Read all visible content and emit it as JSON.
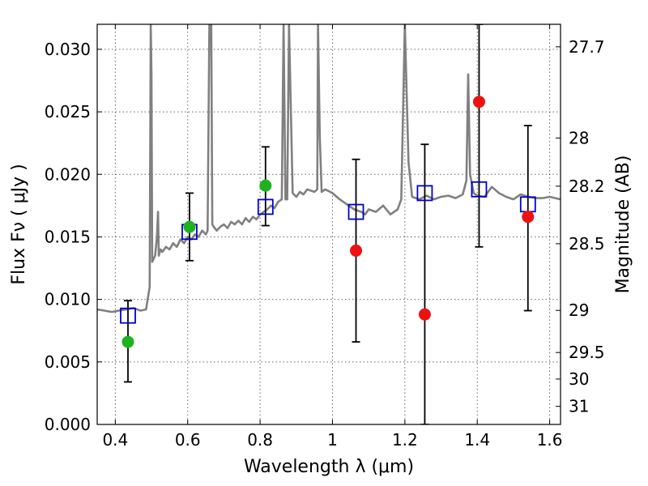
{
  "chart_data": {
    "type": "scatter",
    "title": "",
    "xlabel": "Wavelength  λ (μm)",
    "ylabel": "Flux  Fν  ( μJy )",
    "y2label": "Magnitude (AB)",
    "xlim": [
      0.35,
      1.63
    ],
    "ylim": [
      0.0,
      0.032
    ],
    "grid": true,
    "x_ticks": [
      0.4,
      0.6,
      0.8,
      1.0,
      1.2,
      1.4,
      1.6
    ],
    "x_tick_labels": [
      "0.4",
      "0.6",
      "0.8",
      "1",
      "1.2",
      "1.4",
      "1.6"
    ],
    "y_ticks": [
      0.0,
      0.005,
      0.01,
      0.015,
      0.02,
      0.025,
      0.03
    ],
    "y_tick_labels": [
      "0.000",
      "0.005",
      "0.010",
      "0.015",
      "0.020",
      "0.025",
      "0.030"
    ],
    "y2_ticks": [
      {
        "flux": 0.030199,
        "label": "27.7"
      },
      {
        "flux": 0.022909,
        "label": "28"
      },
      {
        "flux": 0.019055,
        "label": "28.2"
      },
      {
        "flux": 0.014454,
        "label": "28.5"
      },
      {
        "flux": 0.00912,
        "label": "29"
      },
      {
        "flux": 0.005754,
        "label": "29.5"
      },
      {
        "flux": 0.003631,
        "label": "30"
      },
      {
        "flux": 0.001445,
        "label": "31"
      }
    ],
    "colors": {
      "spectrum": "#808080",
      "model": "#0000cc",
      "green": "#1db31d",
      "red": "#ee1111",
      "errorbar": "#000000"
    },
    "spectrum": {
      "x": [
        0.35,
        0.37,
        0.39,
        0.41,
        0.43,
        0.45,
        0.47,
        0.485,
        0.495,
        0.498,
        0.5,
        0.502,
        0.51,
        0.515,
        0.518,
        0.52,
        0.525,
        0.53,
        0.54,
        0.55,
        0.56,
        0.57,
        0.58,
        0.59,
        0.6,
        0.61,
        0.62,
        0.63,
        0.64,
        0.65,
        0.655,
        0.66,
        0.665,
        0.668,
        0.672,
        0.68,
        0.69,
        0.7,
        0.71,
        0.72,
        0.73,
        0.74,
        0.75,
        0.76,
        0.77,
        0.78,
        0.79,
        0.8,
        0.81,
        0.82,
        0.83,
        0.84,
        0.85,
        0.86,
        0.865,
        0.87,
        0.875,
        0.88,
        0.89,
        0.9,
        0.91,
        0.92,
        0.93,
        0.95,
        0.958,
        0.96,
        0.965,
        0.97,
        0.98,
        1.0,
        1.02,
        1.04,
        1.06,
        1.08,
        1.09,
        1.1,
        1.12,
        1.14,
        1.16,
        1.18,
        1.19,
        1.2,
        1.21,
        1.22,
        1.24,
        1.26,
        1.28,
        1.3,
        1.32,
        1.34,
        1.36,
        1.37,
        1.375,
        1.38,
        1.39,
        1.4,
        1.42,
        1.44,
        1.46,
        1.48,
        1.5,
        1.52,
        1.54,
        1.56,
        1.58,
        1.6,
        1.63
      ],
      "y": [
        0.0092,
        0.0091,
        0.009,
        0.0091,
        0.0092,
        0.0093,
        0.0091,
        0.0092,
        0.011,
        0.032,
        0.028,
        0.013,
        0.0135,
        0.015,
        0.017,
        0.0135,
        0.014,
        0.0138,
        0.0142,
        0.014,
        0.0145,
        0.0142,
        0.0148,
        0.0145,
        0.015,
        0.0148,
        0.0152,
        0.015,
        0.0155,
        0.0152,
        0.0155,
        0.032,
        0.032,
        0.016,
        0.0158,
        0.0155,
        0.0158,
        0.016,
        0.0157,
        0.0162,
        0.016,
        0.0163,
        0.016,
        0.0165,
        0.0162,
        0.0166,
        0.0164,
        0.0168,
        0.017,
        0.0172,
        0.0175,
        0.0173,
        0.0178,
        0.018,
        0.032,
        0.018,
        0.018,
        0.032,
        0.0185,
        0.0182,
        0.0186,
        0.0184,
        0.0188,
        0.0186,
        0.0188,
        0.032,
        0.023,
        0.0186,
        0.0188,
        0.0185,
        0.018,
        0.0176,
        0.0172,
        0.017,
        0.0168,
        0.0172,
        0.017,
        0.0175,
        0.0168,
        0.0172,
        0.018,
        0.032,
        0.021,
        0.0182,
        0.018,
        0.0183,
        0.018,
        0.0182,
        0.0183,
        0.0181,
        0.0184,
        0.0195,
        0.028,
        0.02,
        0.0185,
        0.0183,
        0.0182,
        0.019,
        0.0185,
        0.0182,
        0.018,
        0.0184,
        0.0182,
        0.0181,
        0.0181,
        0.0182,
        0.018
      ]
    },
    "model_points": {
      "x": [
        0.435,
        0.605,
        0.815,
        1.065,
        1.255,
        1.405,
        1.54
      ],
      "y": [
        0.0087,
        0.0154,
        0.0174,
        0.017,
        0.0185,
        0.0188,
        0.0176
      ]
    },
    "green_points": {
      "x": [
        0.435,
        0.605,
        0.815
      ],
      "y": [
        0.0066,
        0.0158,
        0.0191
      ]
    },
    "red_points": {
      "x": [
        1.065,
        1.255,
        1.405,
        1.54
      ],
      "y": [
        0.0139,
        0.0088,
        0.0258,
        0.0166
      ]
    },
    "error_bars": [
      {
        "x": 0.435,
        "lo": 0.0034,
        "hi": 0.0099
      },
      {
        "x": 0.605,
        "lo": 0.0131,
        "hi": 0.0185
      },
      {
        "x": 0.815,
        "lo": 0.0159,
        "hi": 0.0222
      },
      {
        "x": 1.065,
        "lo": 0.0066,
        "hi": 0.0212
      },
      {
        "x": 1.255,
        "lo": 0.0,
        "hi": 0.0224
      },
      {
        "x": 1.405,
        "lo": 0.0142,
        "hi": 0.032
      },
      {
        "x": 1.54,
        "lo": 0.0091,
        "hi": 0.0239
      }
    ]
  }
}
